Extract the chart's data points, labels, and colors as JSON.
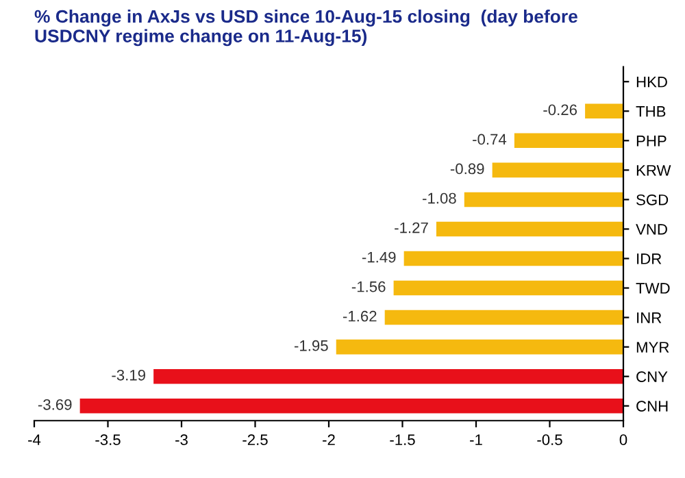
{
  "chart_data": {
    "type": "bar",
    "orientation": "horizontal",
    "title": "% Change in AxJs vs USD since 10-Aug-15 closing  (day before USDCNY regime change on 11-Aug-15)",
    "categories": [
      "HKD",
      "THB",
      "PHP",
      "KRW",
      "SGD",
      "VND",
      "IDR",
      "TWD",
      "INR",
      "MYR",
      "CNY",
      "CNH"
    ],
    "values": [
      0,
      -0.26,
      -0.74,
      -0.89,
      -1.08,
      -1.27,
      -1.49,
      -1.56,
      -1.62,
      -1.95,
      -3.19,
      -3.69
    ],
    "value_labels": [
      null,
      "-0.26",
      "-0.74",
      "-0.89",
      "-1.08",
      "-1.27",
      "-1.49",
      "-1.56",
      "-1.62",
      "-1.95",
      "-3.19",
      "-3.69"
    ],
    "colors": [
      "#f5b90f",
      "#f5b90f",
      "#f5b90f",
      "#f5b90f",
      "#f5b90f",
      "#f5b90f",
      "#f5b90f",
      "#f5b90f",
      "#f5b90f",
      "#f5b90f",
      "#e8101a",
      "#e8101a"
    ],
    "xlim": [
      -4,
      0
    ],
    "xticks": [
      -4,
      -3.5,
      -3,
      -2.5,
      -2,
      -1.5,
      -1,
      -0.5,
      0
    ],
    "grid": false,
    "legend": false
  }
}
